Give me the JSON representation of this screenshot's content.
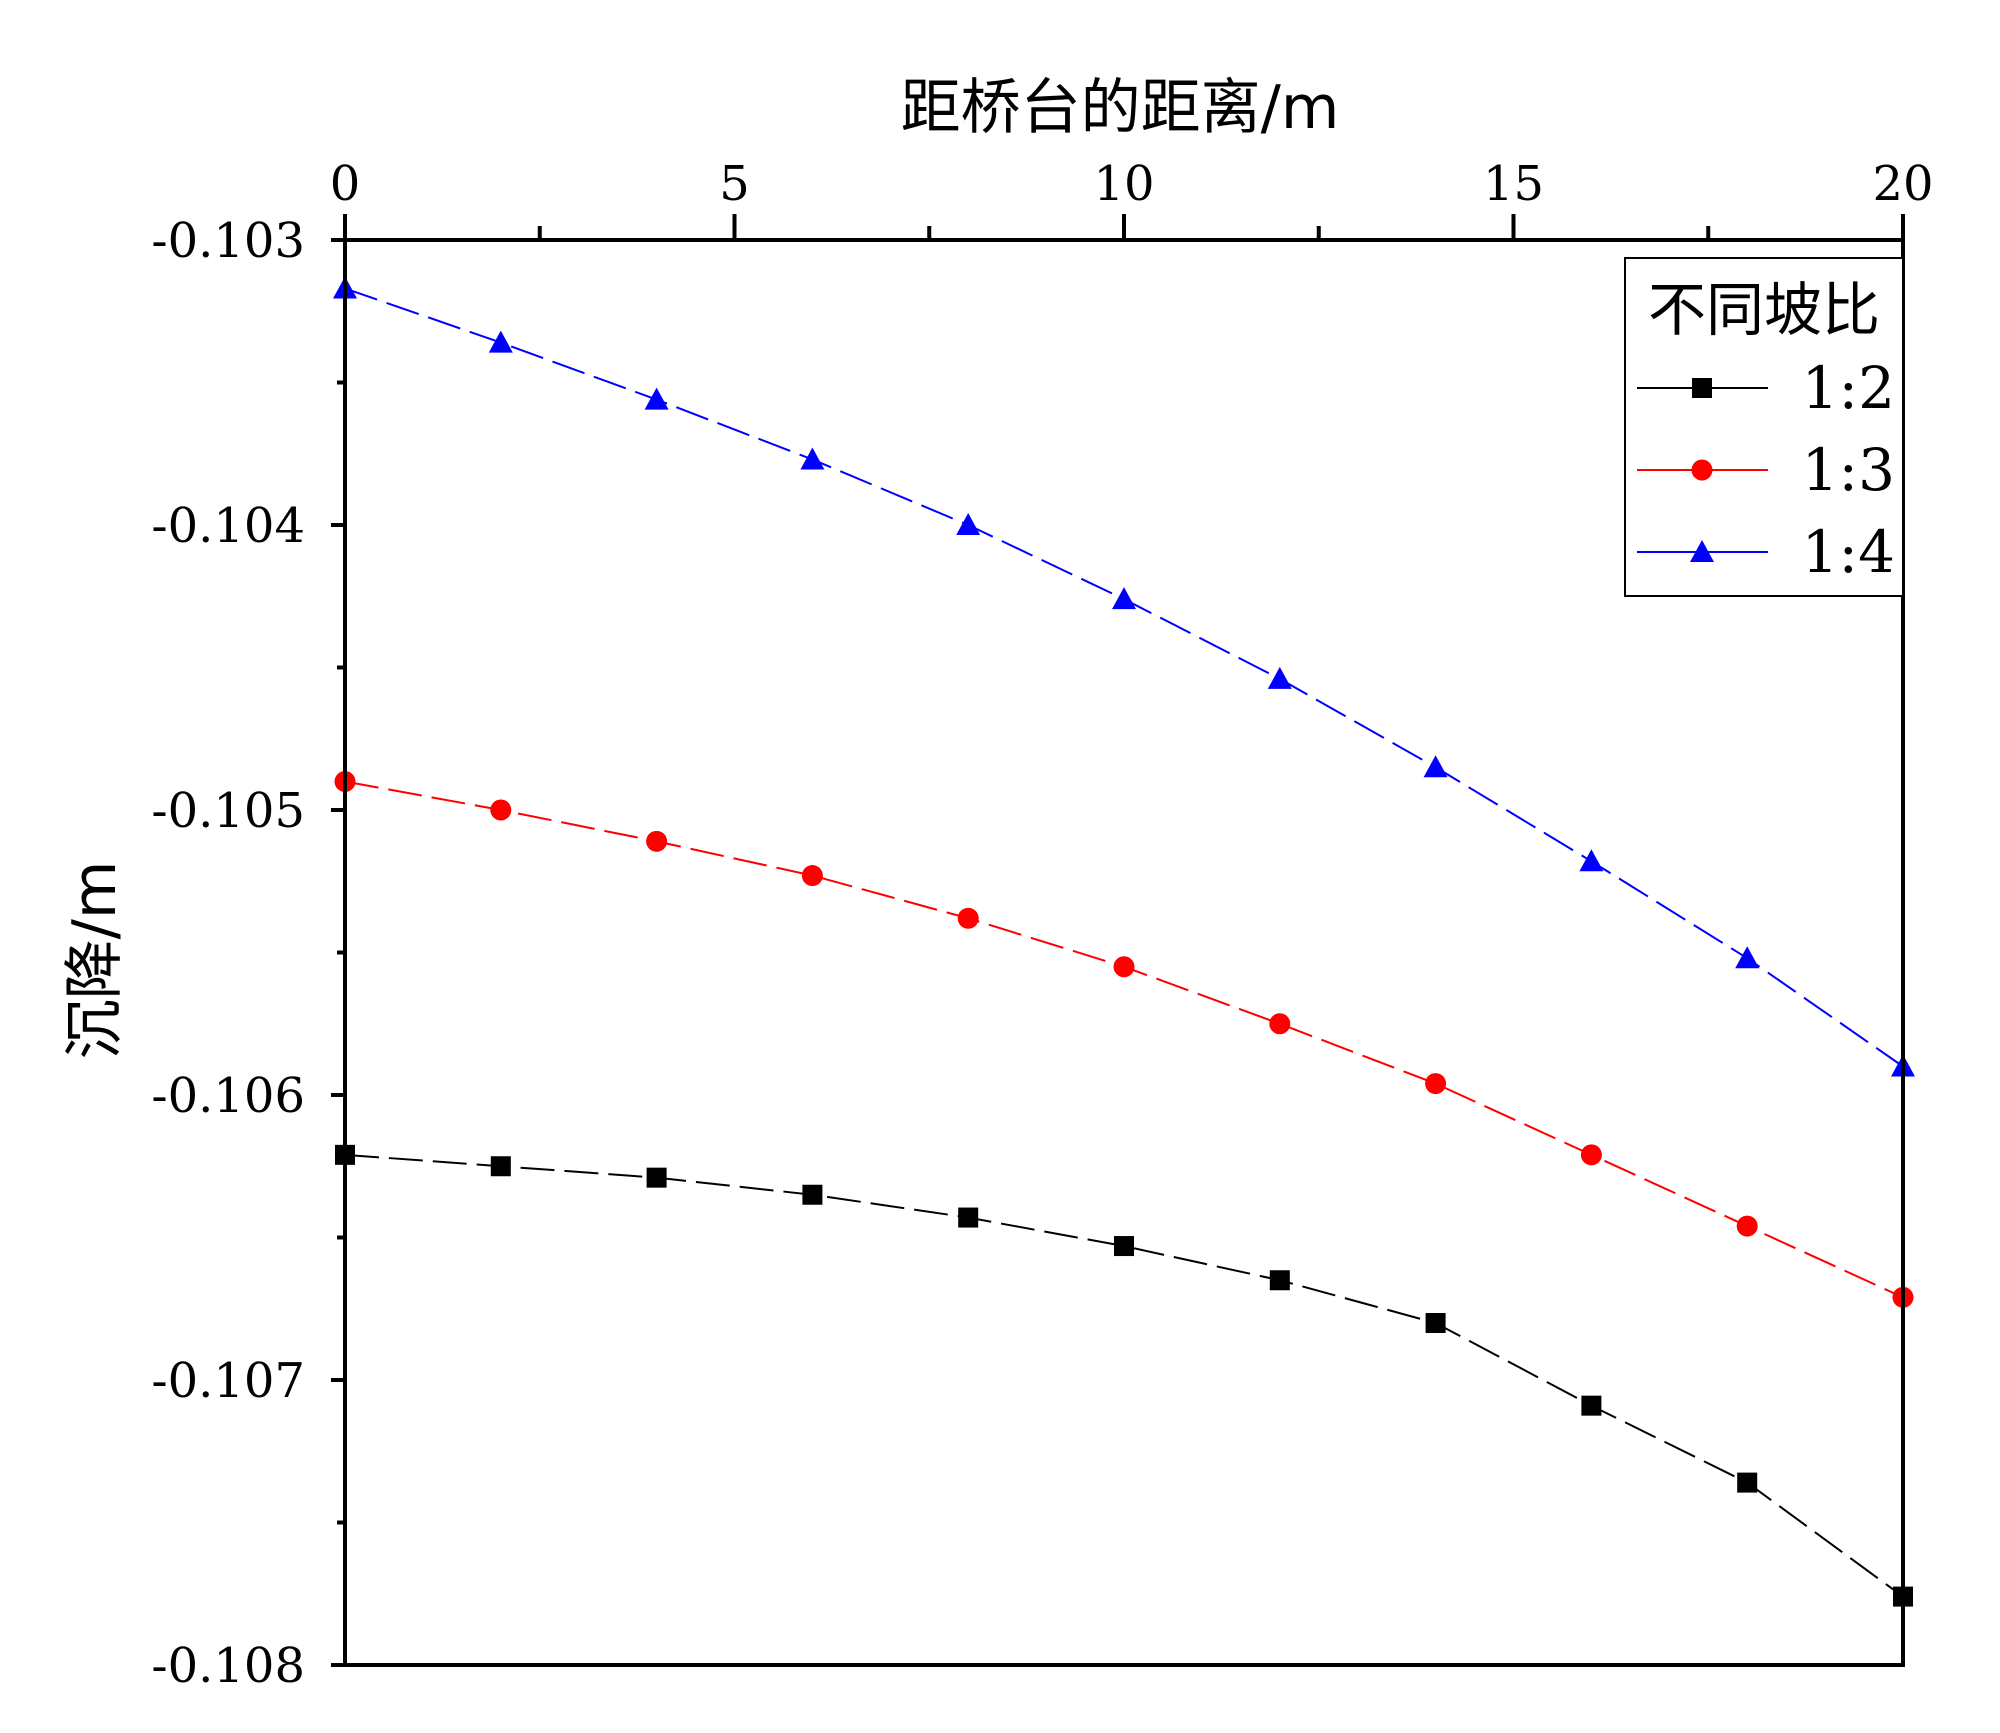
{
  "chart_data": {
    "type": "line",
    "xlabel": "距桥台的距离/m",
    "ylabel": "沉降/m",
    "xlim": [
      0,
      20
    ],
    "ylim": [
      -0.108,
      -0.103
    ],
    "x_axis_position": "top",
    "x_ticks": [
      0,
      5,
      10,
      15,
      20
    ],
    "x_tick_labels": [
      "0",
      "5",
      "10",
      "15",
      "20"
    ],
    "y_ticks": [
      -0.103,
      -0.104,
      -0.105,
      -0.106,
      -0.107,
      -0.108
    ],
    "y_tick_labels": [
      "-0.103",
      "-0.104",
      "-0.105",
      "-0.106",
      "-0.107",
      "-0.108"
    ],
    "grid": false,
    "legend": {
      "title": "不同坡比",
      "position": "top-right"
    },
    "x": [
      0,
      2,
      4,
      6,
      8,
      10,
      12,
      14,
      16,
      18,
      20
    ],
    "series": [
      {
        "name": "1:2",
        "color": "#000000",
        "marker": "square",
        "values": [
          -0.10621,
          -0.10625,
          -0.10629,
          -0.10635,
          -0.10643,
          -0.10653,
          -0.10665,
          -0.1068,
          -0.10709,
          -0.10736,
          -0.10776
        ]
      },
      {
        "name": "1:3",
        "color": "#ff0000",
        "marker": "circle",
        "values": [
          -0.1049,
          -0.105,
          -0.10511,
          -0.10523,
          -0.10538,
          -0.10555,
          -0.10575,
          -0.10596,
          -0.10621,
          -0.10646,
          -0.10671
        ]
      },
      {
        "name": "1:4",
        "color": "#0000ff",
        "marker": "triangle",
        "values": [
          -0.10317,
          -0.10336,
          -0.10356,
          -0.10377,
          -0.104,
          -0.10426,
          -0.10454,
          -0.10485,
          -0.10518,
          -0.10552,
          -0.1059
        ]
      }
    ]
  }
}
